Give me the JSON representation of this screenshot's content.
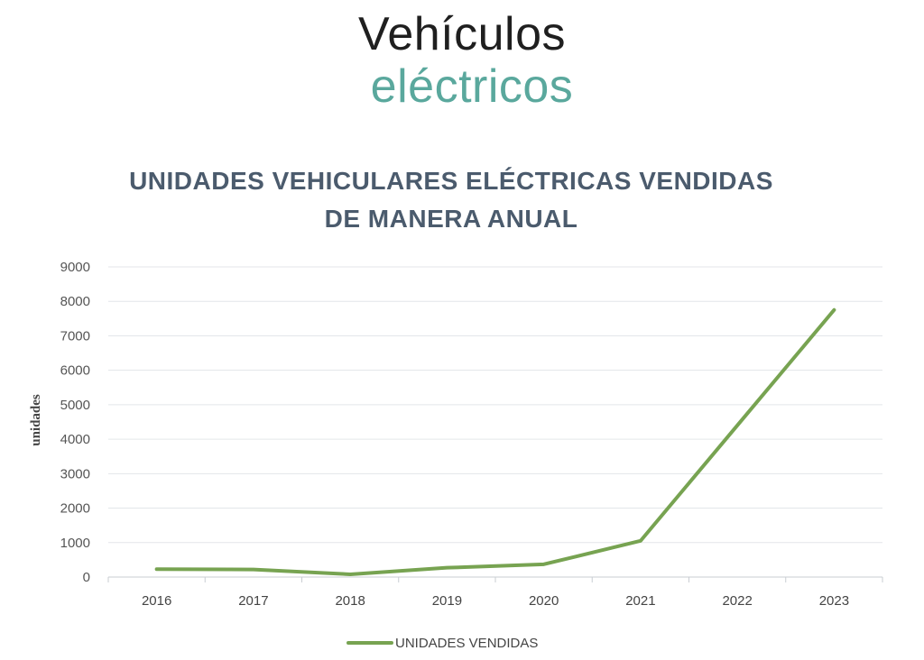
{
  "brand": {
    "line1": "Vehículos",
    "line2": "eléctricos"
  },
  "chart_data": {
    "type": "line",
    "title_lines": [
      "UNIDADES VEHICULARES ELÉCTRICAS VENDIDAS",
      "DE MANERA ANUAL"
    ],
    "xlabel": "",
    "ylabel": "unidades",
    "categories": [
      "2016",
      "2017",
      "2018",
      "2019",
      "2020",
      "2021",
      "2022",
      "2023"
    ],
    "yticks": [
      0,
      1000,
      2000,
      3000,
      4000,
      5000,
      6000,
      7000,
      8000,
      9000
    ],
    "ylim": [
      0,
      9000
    ],
    "grid": true,
    "legend_position": "bottom",
    "series": [
      {
        "name": "UNIDADES VENDIDAS",
        "color": "#77a351",
        "values": [
          230,
          220,
          80,
          270,
          370,
          1050,
          4400,
          7750
        ]
      }
    ]
  }
}
